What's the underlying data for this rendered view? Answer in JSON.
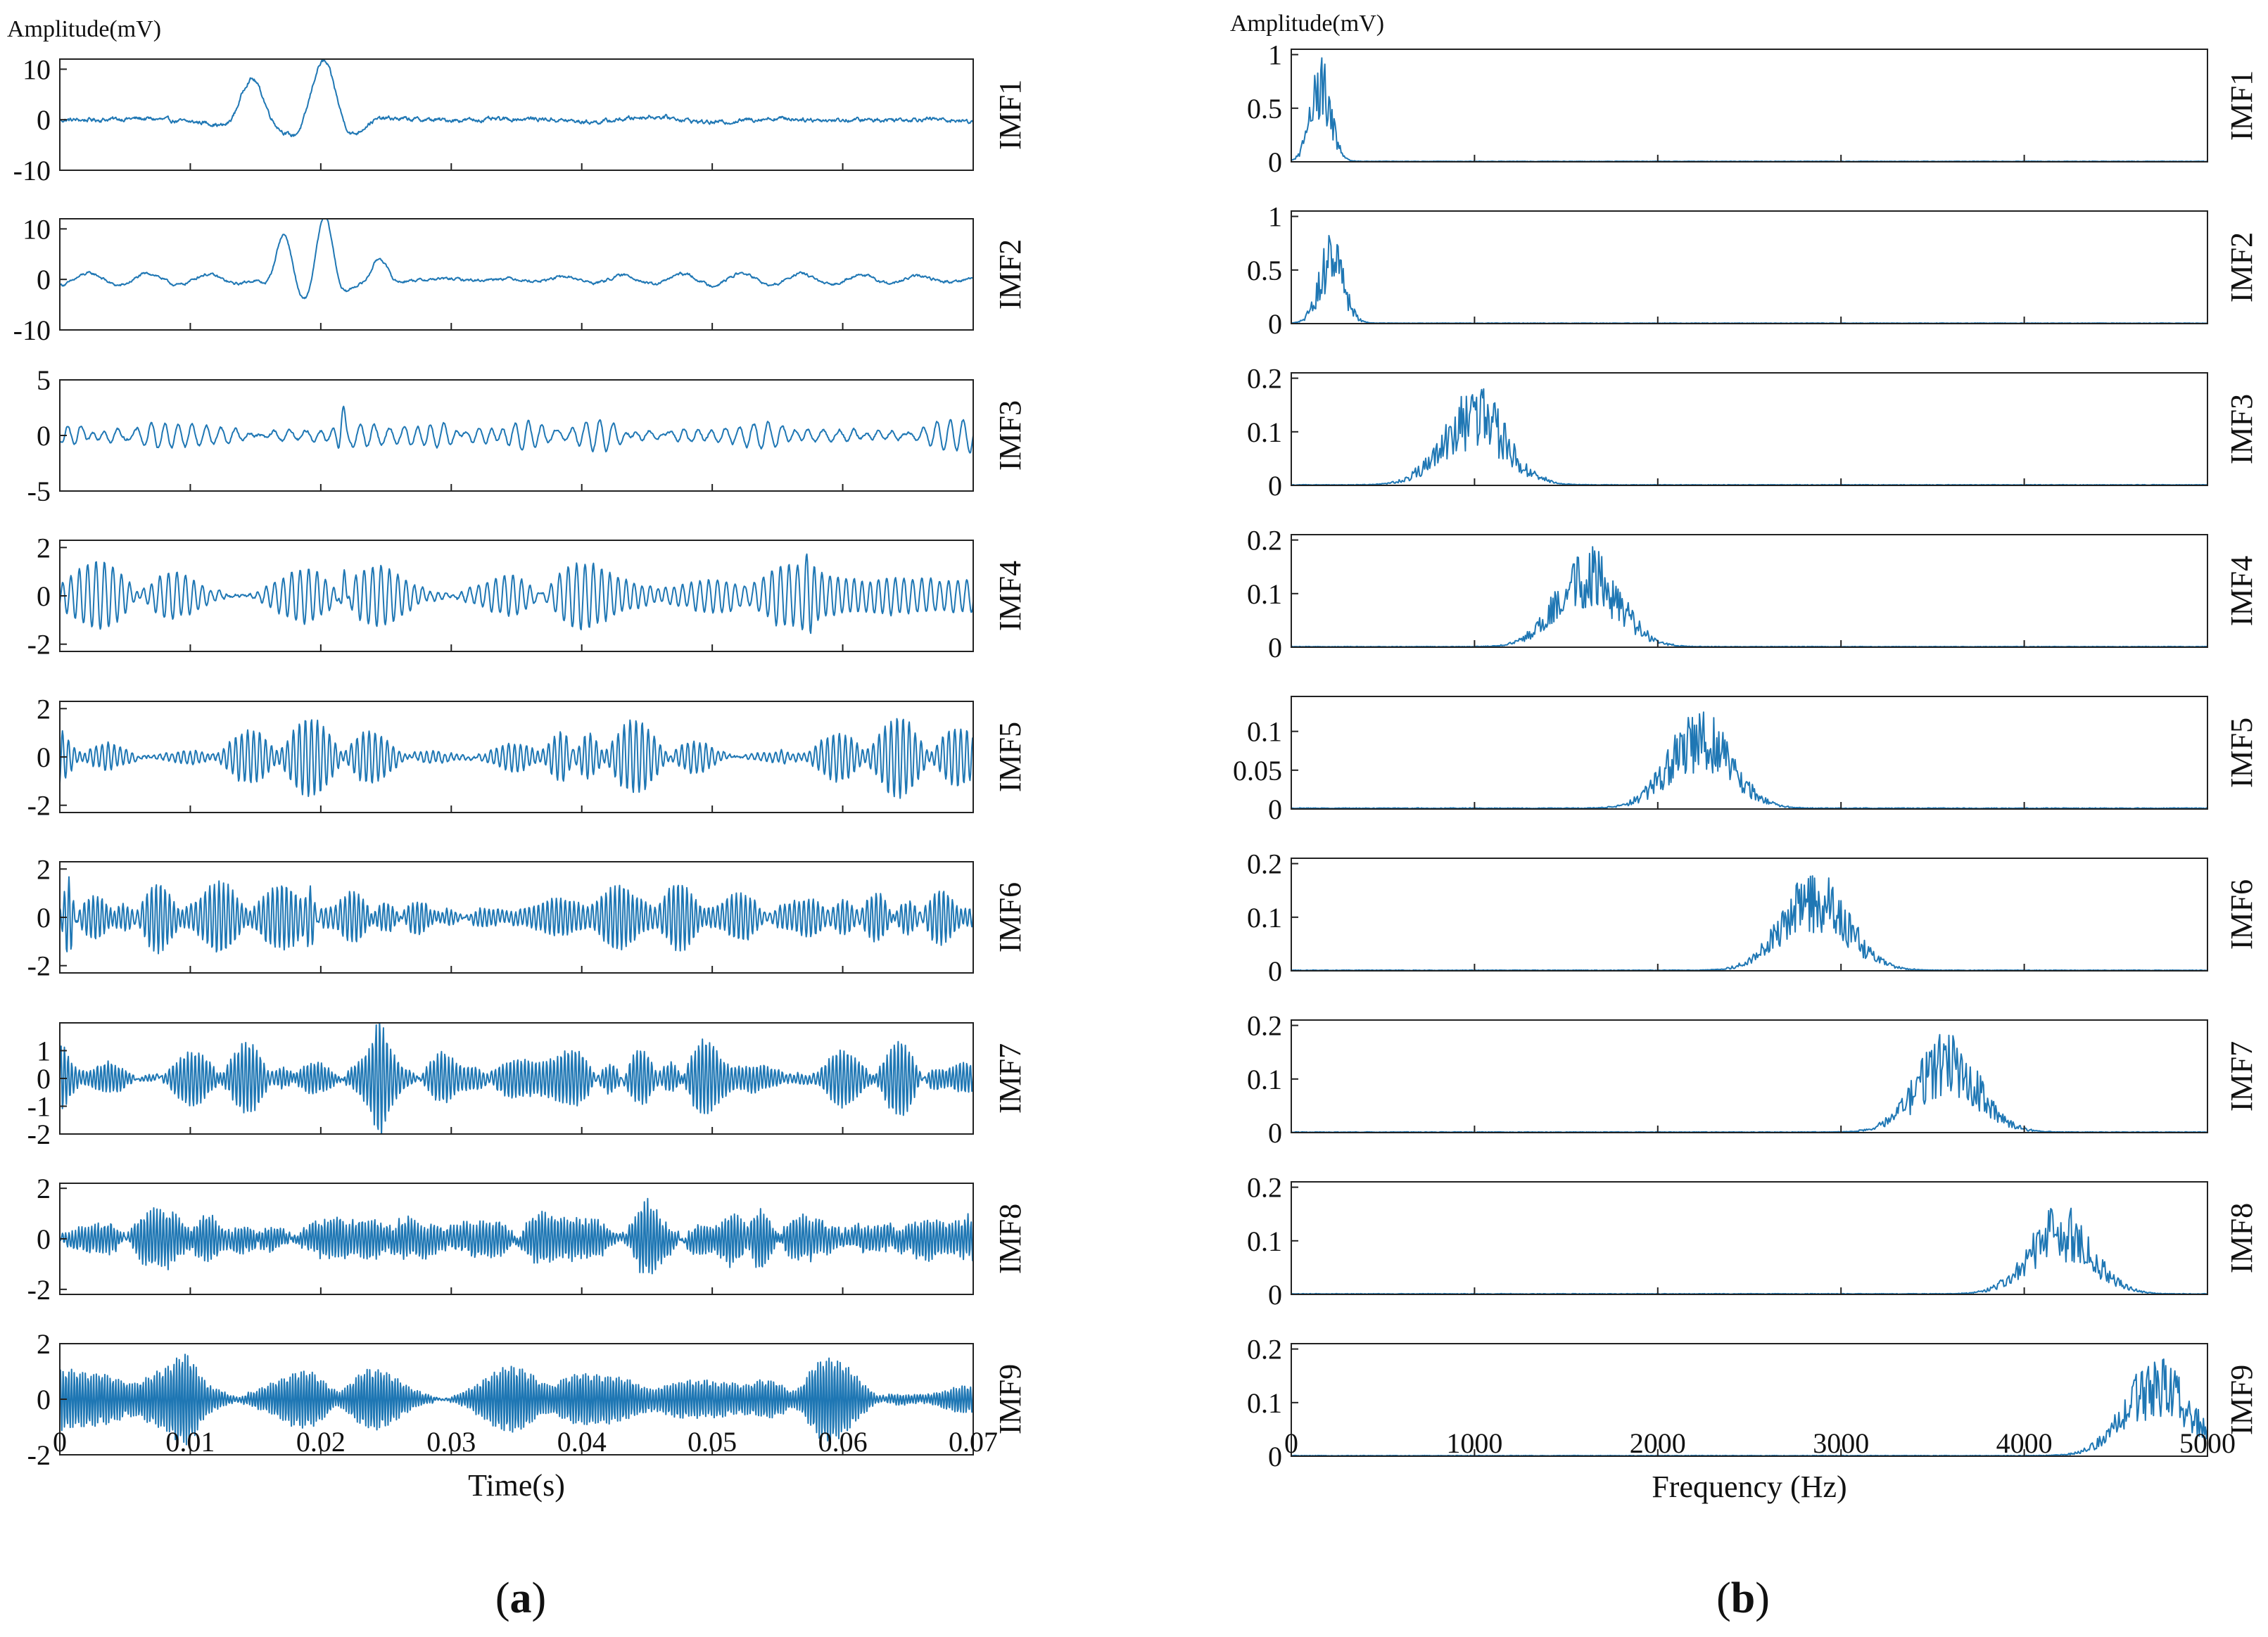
{
  "figure": {
    "caption_a": "a",
    "caption_b": "b",
    "line_color": "#1f77b4"
  },
  "chart_data": [
    {
      "id": "a",
      "type": "line",
      "title": "",
      "ylabel": "Amplitude(mV)",
      "xlabel": "Time(s)",
      "xlim": [
        0,
        0.07
      ],
      "xticks": [
        0,
        0.01,
        0.02,
        0.03,
        0.04,
        0.05,
        0.06,
        0.07
      ],
      "xticklabels": [
        "0",
        "0.01",
        "0.02",
        "0.03",
        "0.04",
        "0.05",
        "0.06",
        "0.07"
      ],
      "panels": [
        {
          "label": "IMF1",
          "ylim": [
            -10,
            12
          ],
          "yticks": [
            10,
            0,
            -10
          ],
          "yticklabels": [
            "10",
            "0",
            "-10"
          ],
          "components": [
            {
              "freq": 100,
              "amp": 0.6
            }
          ],
          "bursts": [
            {
              "t": 0.0147,
              "amp": 7.5,
              "width": 0.0018,
              "freq": 160
            },
            {
              "t": 0.0202,
              "amp": 12,
              "width": 0.0022,
              "freq": 160
            }
          ],
          "noise": 0.3
        },
        {
          "label": "IMF2",
          "ylim": [
            -10,
            12
          ],
          "yticks": [
            10,
            0,
            -10
          ],
          "yticklabels": [
            "10",
            "0",
            "-10"
          ],
          "components": [
            {
              "freq": 220,
              "amp": 1.2
            }
          ],
          "bursts": [
            {
              "t": 0.0172,
              "amp": 9,
              "width": 0.0013,
              "freq": 230
            },
            {
              "t": 0.0203,
              "amp": 12,
              "width": 0.0014,
              "freq": 230
            },
            {
              "t": 0.0245,
              "amp": 4,
              "width": 0.0012,
              "freq": 230
            }
          ],
          "noise": 0.2
        },
        {
          "label": "IMF3",
          "ylim": [
            -5,
            5
          ],
          "yticks": [
            5,
            0,
            -5
          ],
          "yticklabels": [
            "5",
            "0",
            "-5"
          ],
          "components": [
            {
              "freq": 930,
              "amp": 1.0
            },
            {
              "freq": 1080,
              "amp": 0.6
            },
            {
              "freq": 760,
              "amp": 0.35
            }
          ],
          "bursts": [
            {
              "t": 0.0217,
              "amp": 2.4,
              "width": 0.0004,
              "freq": 1000
            }
          ],
          "noise": 0.1
        },
        {
          "label": "IMF4",
          "ylim": [
            -2.3,
            2.3
          ],
          "yticks": [
            2,
            0,
            -2
          ],
          "yticklabels": [
            "2",
            "0",
            "-2"
          ],
          "components": [
            {
              "freq": 1600,
              "amp": 0.95
            },
            {
              "freq": 1470,
              "amp": 0.75
            }
          ],
          "bursts": [
            {
              "t": 0.0218,
              "amp": 1.3,
              "width": 0.0003,
              "freq": 1600
            },
            {
              "t": 0.0573,
              "amp": 1.2,
              "width": 0.0006,
              "freq": 1600
            }
          ],
          "noise": 0.05
        },
        {
          "label": "IMF5",
          "ylim": [
            -2.3,
            2.3
          ],
          "yticks": [
            2,
            0,
            -2
          ],
          "yticklabels": [
            "2",
            "0",
            "-2"
          ],
          "components": [
            {
              "freq": 2250,
              "amp": 0.95
            },
            {
              "freq": 2050,
              "amp": 0.7
            }
          ],
          "bursts": [
            {
              "t": 0.0395,
              "amp": 1.3,
              "width": 0.0007,
              "freq": 2200
            }
          ],
          "noise": 0.05
        },
        {
          "label": "IMF6",
          "ylim": [
            -2.3,
            2.3
          ],
          "yticks": [
            2,
            0,
            -2
          ],
          "yticklabels": [
            "2",
            "0",
            "-2"
          ],
          "components": [
            {
              "freq": 2900,
              "amp": 0.9
            },
            {
              "freq": 2700,
              "amp": 0.55
            },
            {
              "freq": 3100,
              "amp": 0.45
            }
          ],
          "bursts": [
            {
              "t": 0.0007,
              "amp": 1.5,
              "width": 0.0004,
              "freq": 2900
            },
            {
              "t": 0.0192,
              "amp": 1.4,
              "width": 0.0005,
              "freq": 2900
            }
          ],
          "noise": 0.05
        },
        {
          "label": "IMF7",
          "ylim": [
            -2,
            2
          ],
          "yticks": [
            1,
            0,
            -1,
            -2
          ],
          "yticklabels": [
            "1",
            "0",
            "-1",
            "-2"
          ],
          "components": [
            {
              "freq": 3600,
              "amp": 0.8
            },
            {
              "freq": 3400,
              "amp": 0.55
            },
            {
              "freq": 3800,
              "amp": 0.4
            }
          ],
          "bursts": [
            {
              "t": 0.0245,
              "amp": 0.9,
              "width": 0.0005,
              "freq": 3600
            }
          ],
          "noise": 0.05
        },
        {
          "label": "IMF8",
          "ylim": [
            -2.2,
            2.2
          ],
          "yticks": [
            2,
            0,
            -2
          ],
          "yticklabels": [
            "2",
            "0",
            "-2"
          ],
          "components": [
            {
              "freq": 4200,
              "amp": 0.75
            },
            {
              "freq": 4000,
              "amp": 0.55
            },
            {
              "freq": 4400,
              "amp": 0.35
            }
          ],
          "bursts": [
            {
              "t": 0.0448,
              "amp": 1.3,
              "width": 0.0012,
              "freq": 4200
            },
            {
              "t": 0.0535,
              "amp": 1.2,
              "width": 0.001,
              "freq": 4200
            }
          ],
          "noise": 0.1
        },
        {
          "label": "IMF9",
          "ylim": [
            -2,
            2
          ],
          "yticks": [
            2,
            0,
            -2
          ],
          "yticklabels": [
            "2",
            "0",
            "-2"
          ],
          "components": [
            {
              "freq": 4720,
              "amp": 0.95
            },
            {
              "freq": 4600,
              "amp": 0.7
            }
          ],
          "bursts": [
            {
              "t": 0.0098,
              "amp": 0.8,
              "width": 0.0012,
              "freq": 4700
            },
            {
              "t": 0.0565,
              "amp": 0.6,
              "width": 0.0012,
              "freq": 4700
            }
          ],
          "noise": 0.03
        }
      ]
    },
    {
      "id": "b",
      "type": "line",
      "title": "",
      "ylabel": "Amplitude(mV)",
      "xlabel": "Frequency (Hz)",
      "xlim": [
        0,
        5000
      ],
      "xticks": [
        0,
        1000,
        2000,
        3000,
        4000,
        5000
      ],
      "xticklabels": [
        "0",
        "1000",
        "2000",
        "3000",
        "4000",
        "5000"
      ],
      "panels": [
        {
          "label": "IMF1",
          "ylim": [
            0,
            1.05
          ],
          "yticks": [
            1,
            0.5,
            0
          ],
          "yticklabels": [
            "1",
            "0.5",
            "0"
          ],
          "peaks": [
            {
              "f": 160,
              "a": 1.0,
              "w": 55
            }
          ],
          "floor": 0.004
        },
        {
          "label": "IMF2",
          "ylim": [
            0,
            1.05
          ],
          "yticks": [
            1,
            0.5,
            0
          ],
          "yticklabels": [
            "1",
            "0.5",
            "0"
          ],
          "peaks": [
            {
              "f": 220,
              "a": 0.88,
              "w": 65
            }
          ],
          "floor": 0.004
        },
        {
          "label": "IMF3",
          "ylim": [
            0,
            0.21
          ],
          "yticks": [
            0.2,
            0.1,
            0
          ],
          "yticklabels": [
            "0.2",
            "0.1",
            "0"
          ],
          "peaks": [
            {
              "f": 1000,
              "a": 0.19,
              "w": 170
            }
          ],
          "floor": 0.001
        },
        {
          "label": "IMF4",
          "ylim": [
            0,
            0.21
          ],
          "yticks": [
            0.2,
            0.1,
            0
          ],
          "yticklabels": [
            "0.2",
            "0.1",
            "0"
          ],
          "peaks": [
            {
              "f": 1620,
              "a": 0.19,
              "w": 170
            }
          ],
          "floor": 0.001
        },
        {
          "label": "IMF5",
          "ylim": [
            0,
            0.145
          ],
          "yticks": [
            0.1,
            0.05,
            0
          ],
          "yticklabels": [
            "0.1",
            "0.05",
            "0"
          ],
          "peaks": [
            {
              "f": 2230,
              "a": 0.13,
              "w": 170
            }
          ],
          "floor": 0.001
        },
        {
          "label": "IMF6",
          "ylim": [
            0,
            0.21
          ],
          "yticks": [
            0.2,
            0.1,
            0
          ],
          "yticklabels": [
            "0.2",
            "0.1",
            "0"
          ],
          "peaks": [
            {
              "f": 2860,
              "a": 0.19,
              "w": 180
            }
          ],
          "floor": 0.001
        },
        {
          "label": "IMF7",
          "ylim": [
            0,
            0.21
          ],
          "yticks": [
            0.2,
            0.1,
            0
          ],
          "yticklabels": [
            "0.2",
            "0.1",
            "0"
          ],
          "peaks": [
            {
              "f": 3580,
              "a": 0.19,
              "w": 170
            }
          ],
          "floor": 0.001
        },
        {
          "label": "IMF8",
          "ylim": [
            0,
            0.21
          ],
          "yticks": [
            0.2,
            0.1,
            0
          ],
          "yticklabels": [
            "0.2",
            "0.1",
            "0"
          ],
          "peaks": [
            {
              "f": 4200,
              "a": 0.17,
              "w": 170
            }
          ],
          "floor": 0.001
        },
        {
          "label": "IMF9",
          "ylim": [
            0,
            0.21
          ],
          "yticks": [
            0.2,
            0.1,
            0
          ],
          "yticklabels": [
            "0.2",
            "0.1",
            "0"
          ],
          "peaks": [
            {
              "f": 4730,
              "a": 0.19,
              "w": 180
            }
          ],
          "floor": 0.001
        }
      ]
    }
  ]
}
